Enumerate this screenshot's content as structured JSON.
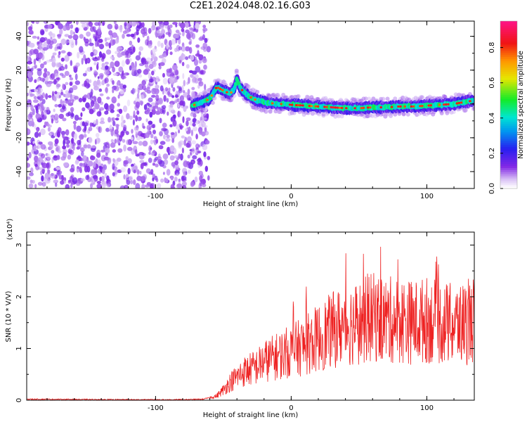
{
  "title": "C2E1.2024.048.02.16.G03",
  "chart_data": [
    {
      "type": "heatmap",
      "xlabel": "Height of straight line (km)",
      "ylabel": "Frequency (Hz)",
      "xlim": [
        -195,
        135
      ],
      "ylim": [
        -50,
        49
      ],
      "x_ticks": [
        -100,
        0,
        100
      ],
      "y_ticks": [
        -40,
        -20,
        0,
        20,
        40
      ],
      "noise_region_x": [
        -195,
        -65
      ],
      "signal_track": {
        "x": [
          -73,
          -66,
          -60,
          -55,
          -50,
          -45,
          -42,
          -40,
          -38,
          -36,
          -33,
          -30,
          -25,
          -20,
          -15,
          -10,
          -5,
          0,
          10,
          20,
          30,
          40,
          50,
          60,
          70,
          80,
          90,
          100,
          110,
          120,
          130,
          135
        ],
        "frequency_hz": [
          -1,
          1,
          3,
          10,
          8,
          6,
          9,
          15,
          10,
          8,
          6,
          4,
          2,
          1,
          0.5,
          0,
          0,
          -0.5,
          -1,
          -1.5,
          -2,
          -2.5,
          -2.5,
          -2,
          -2,
          -1.5,
          -1.5,
          -1,
          -0.5,
          0,
          1.5,
          2
        ]
      },
      "colorbar": {
        "label": "Normalized spectral amplitude",
        "range": [
          0.0,
          0.95
        ],
        "ticks": [
          "0.0",
          "0.2",
          "0.4",
          "0.6",
          "0.8"
        ]
      }
    },
    {
      "type": "line",
      "xlabel": "Height of straight line (km)",
      "ylabel": "SNR (10 * V/V)",
      "y_exponent_label": "(x10⁴)",
      "xlim": [
        -195,
        135
      ],
      "ylim": [
        0,
        3.25
      ],
      "x_ticks": [
        -100,
        0,
        100
      ],
      "y_ticks": [
        0,
        1,
        2,
        3
      ],
      "series": [
        {
          "color": "#ee2222",
          "x": [
            -195,
            -120,
            -80,
            -65,
            -55,
            -50,
            -45,
            -40,
            -35,
            -30,
            -25,
            -20,
            -10,
            0,
            10,
            20,
            30,
            40,
            50,
            60,
            70,
            80,
            90,
            100,
            110,
            120,
            130,
            135
          ],
          "values": [
            0.02,
            0.01,
            0.01,
            0.02,
            0.08,
            0.2,
            0.35,
            0.45,
            0.55,
            0.6,
            0.65,
            0.75,
            0.85,
            0.95,
            1.05,
            1.2,
            1.35,
            1.45,
            1.5,
            1.6,
            1.55,
            1.55,
            1.5,
            1.55,
            1.5,
            1.45,
            1.5,
            1.55
          ]
        }
      ]
    }
  ]
}
